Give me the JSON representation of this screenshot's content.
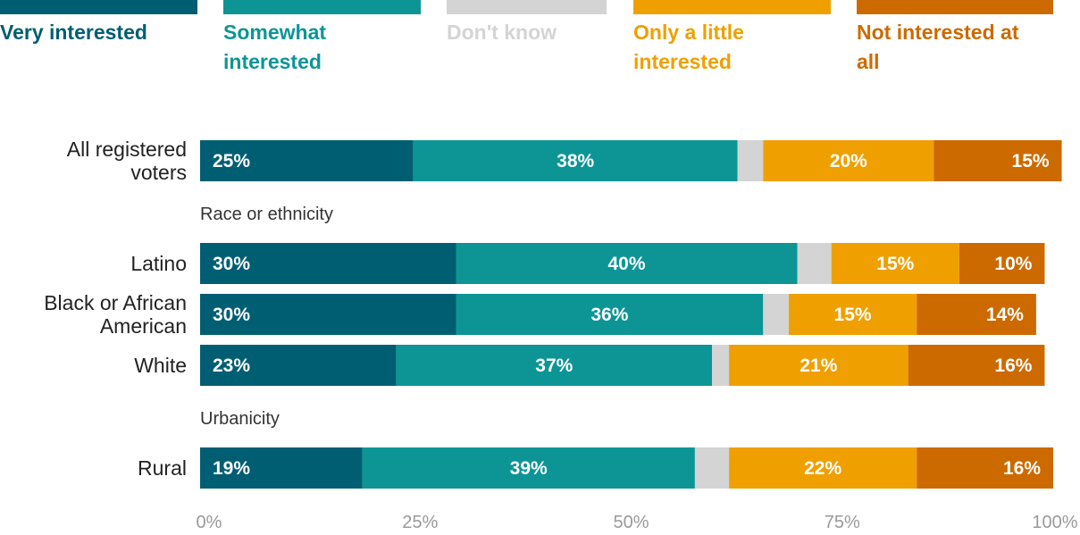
{
  "chart_data": {
    "type": "bar",
    "orientation": "horizontal",
    "stacked": true,
    "series": [
      {
        "name": "Very interested",
        "color": "#005e73",
        "values": [
          25,
          30,
          30,
          23,
          19
        ]
      },
      {
        "name": "Somewhat interested",
        "color": "#0d9596",
        "values": [
          38,
          40,
          36,
          37,
          39
        ]
      },
      {
        "name": "Don't know",
        "color": "#d4d4d4",
        "values": [
          3,
          4,
          3,
          2,
          4
        ]
      },
      {
        "name": "Only a little interested",
        "color": "#efa000",
        "values": [
          20,
          15,
          15,
          21,
          22
        ]
      },
      {
        "name": "Not interested at all",
        "color": "#cc6a00",
        "values": [
          15,
          10,
          14,
          16,
          16
        ]
      }
    ],
    "data_labels": [
      [
        "25%",
        "38%",
        "",
        "20%",
        "15%"
      ],
      [
        "30%",
        "40%",
        "",
        "15%",
        "10%"
      ],
      [
        "30%",
        "36%",
        "",
        "15%",
        "14%"
      ],
      [
        "23%",
        "37%",
        "",
        "21%",
        "16%"
      ],
      [
        "19%",
        "39%",
        "",
        "22%",
        "16%"
      ]
    ],
    "categories": [
      "All registered voters",
      "Latino",
      "Black or African American",
      "White",
      "Rural"
    ],
    "row_label_lines": [
      [
        "All registered",
        "voters"
      ],
      [
        "Latino"
      ],
      [
        "Black or African",
        "American"
      ],
      [
        "White"
      ],
      [
        "Rural"
      ]
    ],
    "groups": [
      "Race or ethnicity",
      "Urbanicity"
    ],
    "xlim": [
      0,
      100
    ],
    "x_ticks": [
      "0%",
      "25%",
      "50%",
      "75%",
      "100%"
    ],
    "legend_position": "top",
    "legend_label_lines": [
      [
        "Very interested"
      ],
      [
        "Somewhat",
        "interested"
      ],
      [
        "Don't know"
      ],
      [
        "Only a little",
        "interested"
      ],
      [
        "Not interested at",
        "all"
      ]
    ]
  }
}
